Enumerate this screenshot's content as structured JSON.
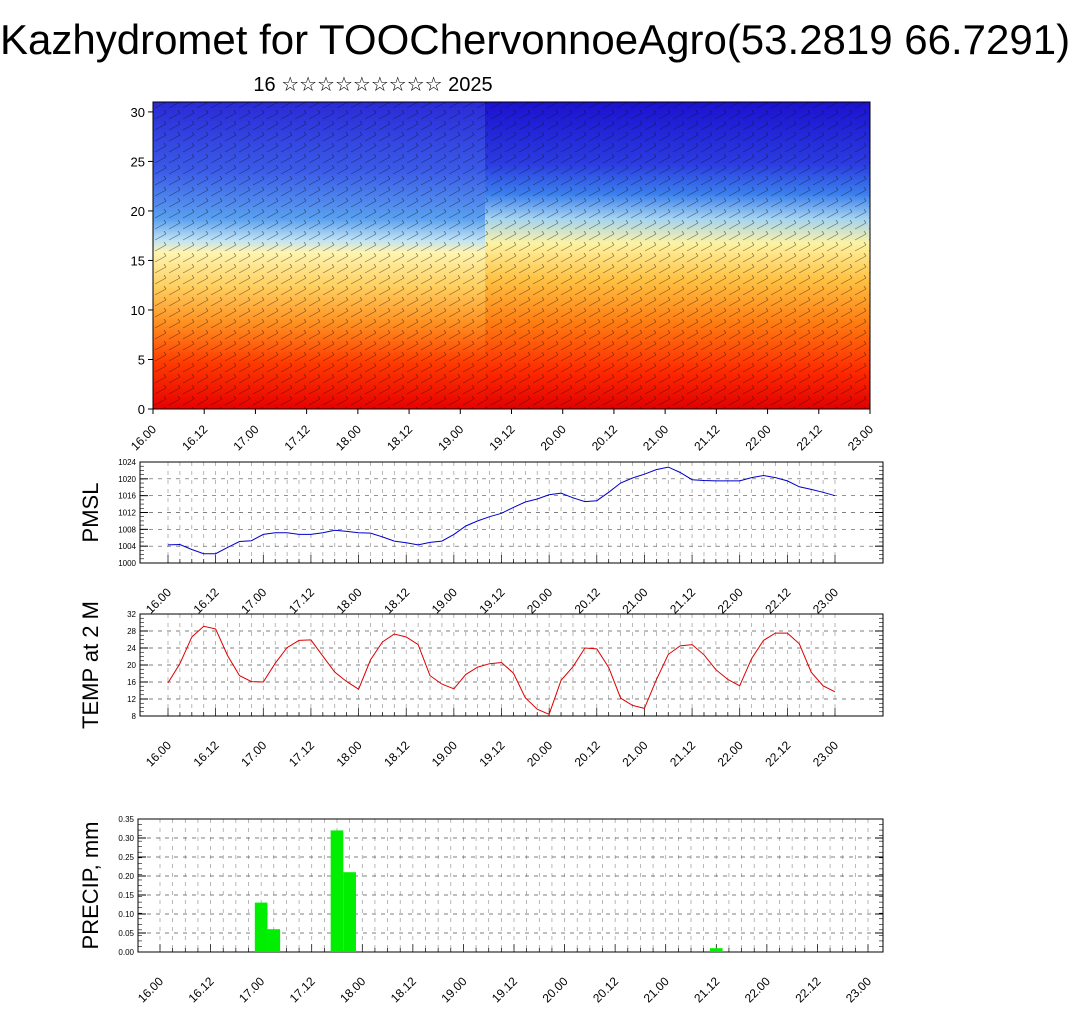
{
  "title": "Kazhydromet for TOOChervonnoeAgro(53.2819 66.7291)",
  "subtitle": "16 ☆☆☆☆☆☆☆☆☆ 2025",
  "x_ticks": [
    "16.00",
    "16.12",
    "17.00",
    "17.12",
    "18.00",
    "18.12",
    "19.00",
    "19.12",
    "20.00",
    "20.12",
    "21.00",
    "21.12",
    "22.00",
    "22.12",
    "23.00"
  ],
  "colors": {
    "pmsl_line": "#0000cc",
    "temp_line": "#dd0000",
    "precip_bar": "#00ee00"
  },
  "chart_data": [
    {
      "type": "heatmap",
      "description_of_field": "vertical cross-section, color filled temperature with wind barbs",
      "y_ticks": [
        0,
        5,
        10,
        15,
        20,
        25,
        30
      ],
      "ylim": [
        0,
        31
      ],
      "xlim": [
        0,
        168
      ],
      "colormap": "blue (top/cold) to yellow to red (bottom/warm)",
      "wind_barbs": true
    },
    {
      "type": "line",
      "ylabel": "PMSL",
      "ylim": [
        1000,
        1024
      ],
      "y_ticks": [
        1000,
        1004,
        1008,
        1012,
        1016,
        1020,
        1024
      ],
      "grid": true,
      "x": [
        0,
        3,
        6,
        9,
        12,
        15,
        18,
        21,
        24,
        27,
        30,
        33,
        36,
        39,
        42,
        45,
        48,
        51,
        54,
        57,
        60,
        63,
        66,
        69,
        72,
        75,
        78,
        81,
        84,
        87,
        90,
        93,
        96,
        99,
        102,
        105,
        108,
        111,
        114,
        117,
        120,
        123,
        126,
        129,
        132,
        135,
        138,
        141,
        144,
        147,
        150,
        153,
        156,
        159,
        162,
        165,
        168
      ],
      "values": [
        1004.3,
        1004.4,
        1003.2,
        1002.2,
        1002.2,
        1003.7,
        1005.1,
        1005.3,
        1006.8,
        1007.2,
        1007.2,
        1006.8,
        1006.8,
        1007.2,
        1007.8,
        1007.5,
        1007.2,
        1007.1,
        1006.2,
        1005.2,
        1004.8,
        1004.3,
        1004.9,
        1005.2,
        1006.8,
        1008.8,
        1010.0,
        1011.0,
        1011.8,
        1013.2,
        1014.5,
        1015.2,
        1016.2,
        1016.6,
        1015.5,
        1014.6,
        1014.8,
        1016.8,
        1019.0,
        1020.2,
        1021.1,
        1022.2,
        1022.8,
        1021.5,
        1019.8,
        1019.6,
        1019.5,
        1019.5,
        1019.5,
        1020.3,
        1020.8,
        1020.3,
        1019.5,
        1018.1,
        1017.5,
        1016.8,
        1016.0
      ]
    },
    {
      "type": "line",
      "ylabel": "TEMP at 2 M",
      "ylim": [
        8,
        32
      ],
      "y_ticks": [
        8,
        12,
        16,
        20,
        24,
        28,
        32
      ],
      "grid": true,
      "x": [
        0,
        3,
        6,
        9,
        12,
        15,
        18,
        21,
        24,
        27,
        30,
        33,
        36,
        39,
        42,
        45,
        48,
        51,
        54,
        57,
        60,
        63,
        66,
        69,
        72,
        75,
        78,
        81,
        84,
        87,
        90,
        93,
        96,
        99,
        102,
        105,
        108,
        111,
        114,
        117,
        120,
        123,
        126,
        129,
        132,
        135,
        138,
        141,
        144,
        147,
        150,
        153,
        156,
        159,
        162,
        165,
        168
      ],
      "values": [
        15.8,
        20.3,
        26.6,
        29.1,
        28.5,
        22.2,
        17.5,
        16.1,
        16.0,
        20.4,
        24.1,
        25.8,
        25.9,
        22.1,
        18.3,
        16.1,
        14.3,
        21.2,
        25.4,
        27.3,
        26.6,
        24.8,
        17.5,
        15.5,
        14.4,
        17.8,
        19.5,
        20.3,
        20.6,
        18.1,
        12.3,
        9.6,
        8.4,
        16.4,
        19.6,
        24.0,
        23.8,
        19.4,
        12.2,
        10.5,
        9.8,
        16.5,
        22.5,
        24.5,
        24.8,
        22.4,
        18.9,
        16.6,
        15.1,
        21.5,
        25.8,
        27.5,
        27.5,
        25.0,
        18.3,
        15.1,
        13.7
      ]
    },
    {
      "type": "bar",
      "ylabel": "PRECIP, mm",
      "ylim": [
        0,
        0.35
      ],
      "y_ticks": [
        "0.00",
        "0.05",
        "0.10",
        "0.15",
        "0.20",
        "0.25",
        "0.30",
        "0.35"
      ],
      "grid": true,
      "x": [
        24,
        27,
        42,
        45,
        132
      ],
      "values": [
        0.13,
        0.06,
        0.32,
        0.21,
        0.01
      ]
    }
  ]
}
